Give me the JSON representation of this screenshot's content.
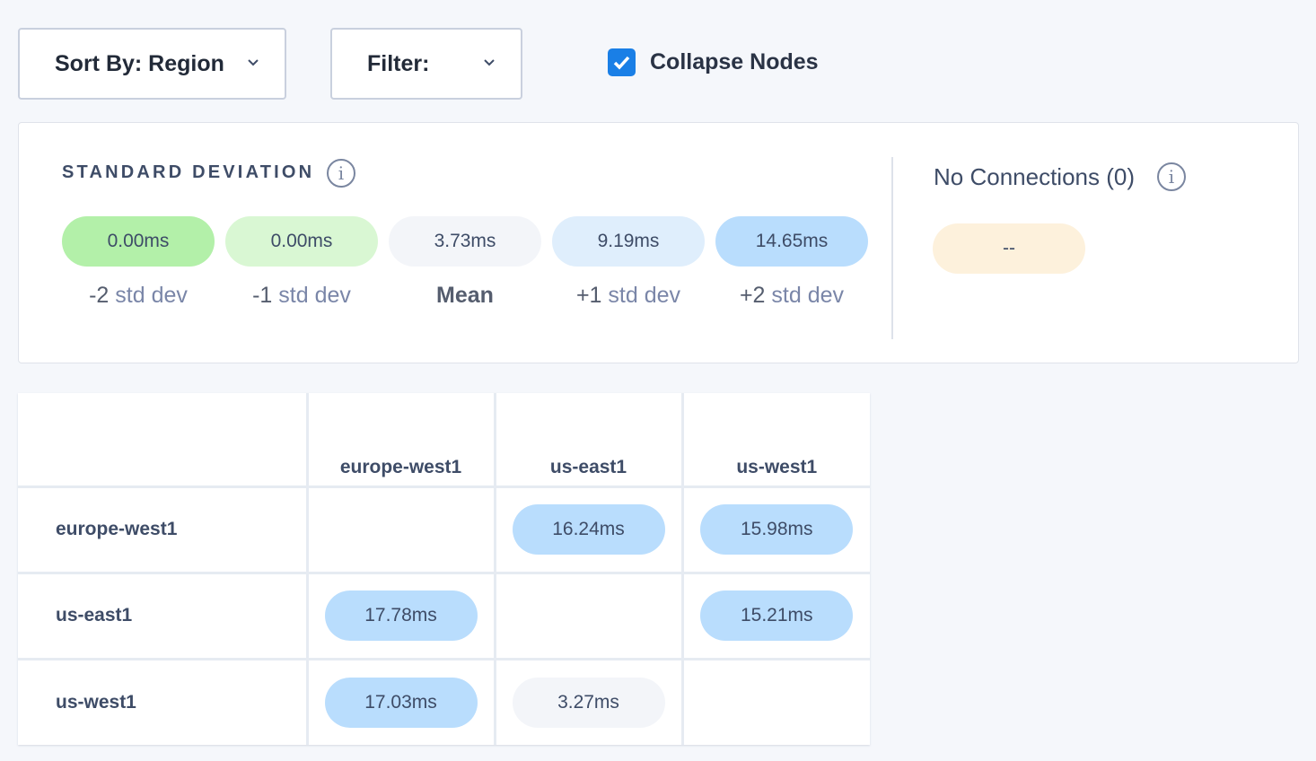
{
  "toolbar": {
    "sort_label": "Sort By: Region",
    "filter_label": "Filter:",
    "collapse_label": "Collapse Nodes",
    "collapse_checked": true
  },
  "std": {
    "title": "STANDARD DEVIATION",
    "items": [
      {
        "value": "0.00ms",
        "prefix": "-2",
        "suffix": "std dev",
        "color": "#b3f0a9"
      },
      {
        "value": "0.00ms",
        "prefix": "-1",
        "suffix": "std dev",
        "color": "#d9f7d3"
      },
      {
        "value": "3.73ms",
        "prefix": "Mean",
        "suffix": "",
        "color": "#f3f5f9"
      },
      {
        "value": "9.19ms",
        "prefix": "+1",
        "suffix": "std dev",
        "color": "#dfeefc"
      },
      {
        "value": "14.65ms",
        "prefix": "+2",
        "suffix": "std dev",
        "color": "#b9ddfd"
      }
    ]
  },
  "no_connections": {
    "label": "No Connections (0)",
    "value": "--",
    "color": "#fdf1dc"
  },
  "matrix": {
    "columns": [
      "europe-west1",
      "us-east1",
      "us-west1"
    ],
    "rows": [
      {
        "label": "europe-west1",
        "cells": [
          "",
          "16.24ms",
          "15.98ms"
        ]
      },
      {
        "label": "us-east1",
        "cells": [
          "17.78ms",
          "",
          "15.21ms"
        ]
      },
      {
        "label": "us-west1",
        "cells": [
          "17.03ms",
          "3.27ms",
          ""
        ]
      }
    ],
    "cell_colors": [
      [
        "",
        "#b9ddfd",
        "#b9ddfd"
      ],
      [
        "#b9ddfd",
        "",
        "#b9ddfd"
      ],
      [
        "#b9ddfd",
        "#f3f5f9",
        ""
      ]
    ]
  }
}
